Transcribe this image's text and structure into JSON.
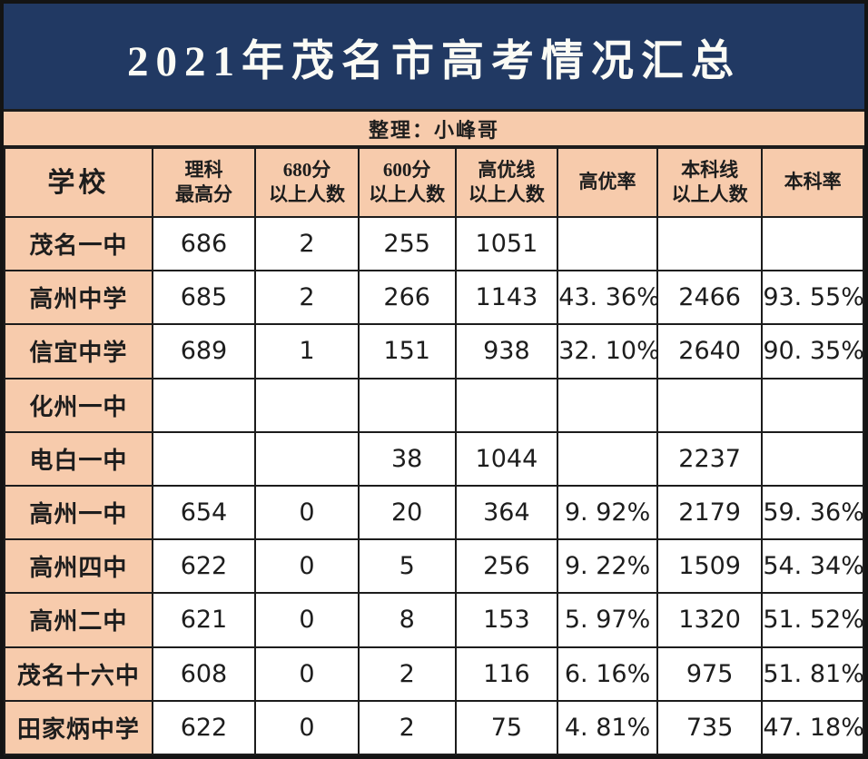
{
  "title": "2021年茂名市高考情况汇总",
  "subtitle": "整理：小峰哥",
  "colors": {
    "navy": "#213963",
    "peach": "#F7CBAC",
    "border": "#1C1C1C",
    "title_text": "#FBFBF5"
  },
  "table": {
    "headers": [
      "学校",
      "理科\n最高分",
      "680分\n以上人数",
      "600分\n以上人数",
      "高优线\n以上人数",
      "高优率",
      "本科线\n以上人数",
      "本科率"
    ],
    "rows": [
      {
        "school": "茂名一中",
        "values": [
          "686",
          "2",
          "255",
          "1051",
          "",
          "",
          ""
        ]
      },
      {
        "school": "高州中学",
        "values": [
          "685",
          "2",
          "266",
          "1143",
          "43. 36%",
          "2466",
          "93. 55%"
        ]
      },
      {
        "school": "信宜中学",
        "values": [
          "689",
          "1",
          "151",
          "938",
          "32. 10%",
          "2640",
          "90. 35%"
        ]
      },
      {
        "school": "化州一中",
        "values": [
          "",
          "",
          "",
          "",
          "",
          "",
          ""
        ]
      },
      {
        "school": "电白一中",
        "values": [
          "",
          "",
          "38",
          "1044",
          "",
          "2237",
          ""
        ]
      },
      {
        "school": "高州一中",
        "values": [
          "654",
          "0",
          "20",
          "364",
          "9. 92%",
          "2179",
          "59. 36%"
        ]
      },
      {
        "school": "高州四中",
        "values": [
          "622",
          "0",
          "5",
          "256",
          "9. 22%",
          "1509",
          "54. 34%"
        ]
      },
      {
        "school": "高州二中",
        "values": [
          "621",
          "0",
          "8",
          "153",
          "5. 97%",
          "1320",
          "51. 52%"
        ]
      },
      {
        "school": "茂名十六中",
        "values": [
          "608",
          "0",
          "2",
          "116",
          "6. 16%",
          "975",
          "51. 81%"
        ]
      },
      {
        "school": "田家炳中学",
        "values": [
          "622",
          "0",
          "2",
          "75",
          "4. 81%",
          "735",
          "47. 18%"
        ]
      }
    ]
  }
}
